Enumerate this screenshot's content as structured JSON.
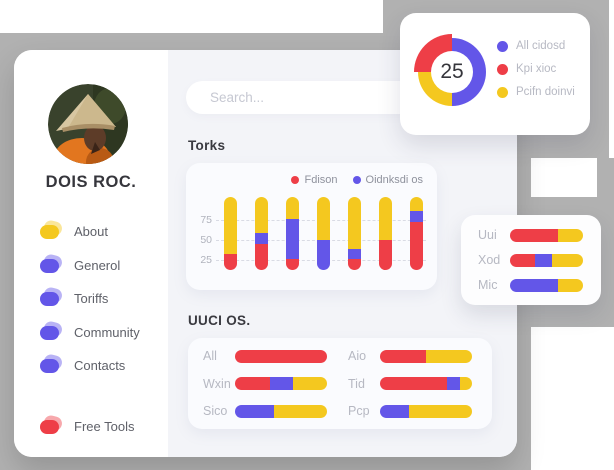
{
  "colors": {
    "red": "#ee3e47",
    "yellow": "#f4c81f",
    "purple": "#6356e8",
    "backdrop_gray": "#b1b1b1"
  },
  "sidebar": {
    "name": "DOIS ROC.",
    "items": [
      {
        "id": "about",
        "label": "About",
        "color": "yellow"
      },
      {
        "id": "generol",
        "label": "Generol",
        "color": "purple"
      },
      {
        "id": "toriffs",
        "label": "Toriffs",
        "color": "purple"
      },
      {
        "id": "community",
        "label": "Community",
        "color": "purple"
      },
      {
        "id": "contacts",
        "label": "Contacts",
        "color": "purple"
      }
    ],
    "free_tools": {
      "id": "free-tools",
      "label": "Free Tools",
      "color": "red"
    }
  },
  "search": {
    "placeholder": "Search..."
  },
  "donut_card": {
    "value": "25",
    "segments": [
      {
        "label": "All cidosd",
        "color": "purple",
        "percent": 50
      },
      {
        "label": "Kpi xioc",
        "color": "red",
        "percent": 25
      },
      {
        "label": "Pcifn doinvi",
        "color": "yellow",
        "percent": 25
      }
    ],
    "legend": [
      {
        "label": "All cidosd",
        "color": "purple"
      },
      {
        "label": "Kpi xioc",
        "color": "red"
      },
      {
        "label": "Pcifn doinvi",
        "color": "yellow"
      }
    ]
  },
  "torks": {
    "title": "Torks",
    "legend": [
      {
        "label": "Fdison",
        "color": "red"
      },
      {
        "label": "Oidnksdi os",
        "color": "purple"
      }
    ],
    "yticks": [
      "75",
      "50",
      "25"
    ],
    "bars": [
      [
        [
          "red",
          22
        ],
        [
          "yellow",
          78
        ]
      ],
      [
        [
          "red",
          36
        ],
        [
          "purple",
          15
        ],
        [
          "yellow",
          49
        ]
      ],
      [
        [
          "red",
          15
        ],
        [
          "purple",
          55
        ],
        [
          "yellow",
          30
        ]
      ],
      [
        [
          "purple",
          41
        ],
        [
          "yellow",
          59
        ]
      ],
      [
        [
          "red",
          15
        ],
        [
          "purple",
          14
        ],
        [
          "yellow",
          71
        ]
      ],
      [
        [
          "red",
          41
        ],
        [
          "yellow",
          59
        ]
      ],
      [
        [
          "red",
          66
        ],
        [
          "purple",
          15
        ],
        [
          "yellow",
          19
        ]
      ]
    ]
  },
  "uuci": {
    "title": "UUCI OS.",
    "rows_left": [
      {
        "label": "All",
        "segments": [
          [
            "red",
            100
          ]
        ]
      },
      {
        "label": "Wxin",
        "segments": [
          [
            "red",
            38
          ],
          [
            "purple",
            25
          ],
          [
            "yellow",
            37
          ]
        ]
      },
      {
        "label": "Sico",
        "segments": [
          [
            "purple",
            42
          ],
          [
            "yellow",
            58
          ]
        ]
      }
    ],
    "rows_right": [
      {
        "label": "Aio",
        "segments": [
          [
            "red",
            50
          ],
          [
            "yellow",
            50
          ]
        ]
      },
      {
        "label": "Tid",
        "segments": [
          [
            "red",
            73
          ],
          [
            "purple",
            14
          ],
          [
            "yellow",
            13
          ]
        ]
      },
      {
        "label": "Pcp",
        "segments": [
          [
            "purple",
            31
          ],
          [
            "yellow",
            69
          ]
        ]
      }
    ]
  },
  "mini_card": {
    "rows": [
      {
        "label": "Uui",
        "segments": [
          [
            "red",
            66
          ],
          [
            "yellow",
            34
          ]
        ]
      },
      {
        "label": "Xod",
        "segments": [
          [
            "red",
            34
          ],
          [
            "purple",
            23
          ],
          [
            "yellow",
            43
          ]
        ]
      },
      {
        "label": "Mic",
        "segments": [
          [
            "purple",
            66
          ],
          [
            "yellow",
            34
          ]
        ]
      }
    ]
  }
}
